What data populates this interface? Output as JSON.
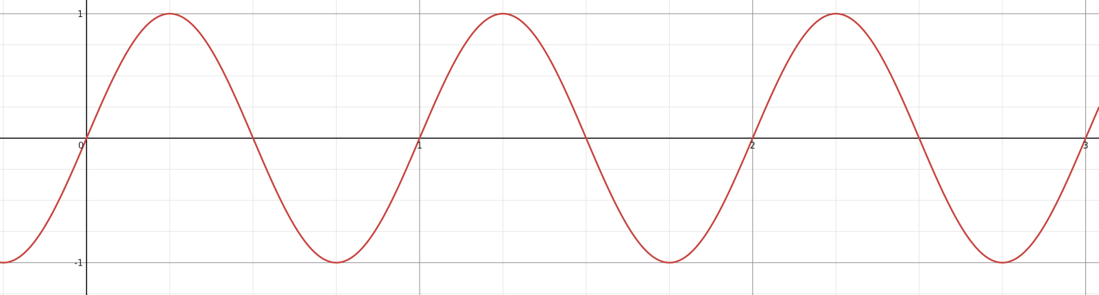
{
  "chart_data": {
    "type": "line",
    "title": "",
    "xlabel": "",
    "ylabel": "",
    "xlim": [
      -0.26,
      3.04
    ],
    "ylim": [
      -1.26,
      1.11
    ],
    "grid": true,
    "x_major_ticks": [
      0,
      1,
      2,
      3
    ],
    "x_minor_step": 0.25,
    "y_major_ticks": [
      -1,
      1
    ],
    "y_minor_step": 0.25,
    "x_tick_labels": [
      "0",
      "1",
      "2",
      "3"
    ],
    "y_tick_labels": [
      "-1",
      "1"
    ],
    "series": [
      {
        "expression": "sin(2πx)",
        "color": "#c74440",
        "x": [
          -0.25,
          -0.125,
          0,
          0.125,
          0.25,
          0.375,
          0.5,
          0.625,
          0.75,
          0.875,
          1,
          1.125,
          1.25,
          1.375,
          1.5,
          1.625,
          1.75,
          1.875,
          2,
          2.125,
          2.25,
          2.375,
          2.5,
          2.625,
          2.75,
          2.875,
          3
        ],
        "y": [
          -1,
          -0.707,
          0,
          0.707,
          1,
          0.707,
          0,
          -0.707,
          -1,
          -0.707,
          0,
          0.707,
          1,
          0.707,
          0,
          -0.707,
          -1,
          -0.707,
          0,
          0.707,
          1,
          0.707,
          0,
          -0.707,
          -1,
          -0.707,
          0
        ]
      }
    ]
  },
  "colors": {
    "minor_grid": "#e6e6e6",
    "major_grid": "#8c8c8c",
    "axis": "#000000",
    "curve": "#c74440"
  }
}
